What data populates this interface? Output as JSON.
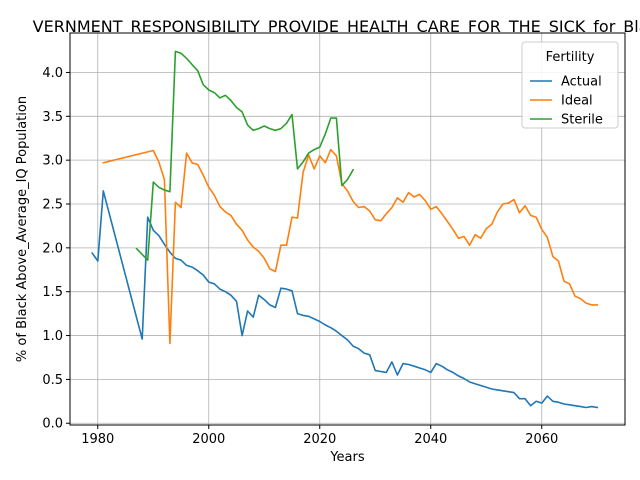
{
  "chart_data": {
    "type": "line",
    "title": "VERNMENT_RESPONSIBILITY_PROVIDE_HEALTH_CARE_FOR_THE_SICK_for_Blac",
    "xlabel": "Years",
    "ylabel": "% of Black Above_Average_IQ Population",
    "xlim": [
      1975,
      2075
    ],
    "ylim": [
      -0.02,
      4.45
    ],
    "xticks": [
      1980,
      2000,
      2020,
      2040,
      2060
    ],
    "yticks": [
      0.0,
      0.5,
      1.0,
      1.5,
      2.0,
      2.5,
      3.0,
      3.5,
      4.0
    ],
    "ytick_labels": [
      "0.0",
      "0.5",
      "1.0",
      "1.5",
      "2.0",
      "2.5",
      "3.0",
      "3.5",
      "4.0"
    ],
    "grid": true,
    "legend": {
      "title": "Fertility",
      "placement": "top-right"
    },
    "series": [
      {
        "name": "Actual",
        "color": "#1f77b4",
        "x": [
          1979,
          1980,
          1981,
          1988,
          1989,
          1990,
          1991,
          1992,
          1993,
          1994,
          1995,
          1996,
          1997,
          1998,
          1999,
          2000,
          2001,
          2002,
          2003,
          2004,
          2005,
          2006,
          2007,
          2008,
          2009,
          2010,
          2011,
          2012,
          2013,
          2014,
          2015,
          2016,
          2017,
          2018,
          2019,
          2020,
          2021,
          2022,
          2023,
          2024,
          2025,
          2026,
          2027,
          2028,
          2029,
          2030,
          2031,
          2032,
          2033,
          2034,
          2035,
          2036,
          2037,
          2038,
          2039,
          2040,
          2041,
          2042,
          2043,
          2044,
          2045,
          2046,
          2047,
          2048,
          2049,
          2050,
          2051,
          2052,
          2053,
          2054,
          2055,
          2056,
          2057,
          2058,
          2059,
          2060,
          2061,
          2062,
          2063,
          2064,
          2065,
          2066,
          2067,
          2068,
          2069,
          2070
        ],
        "y": [
          1.94,
          1.85,
          2.65,
          0.96,
          2.35,
          2.2,
          2.14,
          2.04,
          1.95,
          1.88,
          1.86,
          1.8,
          1.78,
          1.74,
          1.69,
          1.61,
          1.59,
          1.53,
          1.5,
          1.46,
          1.39,
          1.0,
          1.28,
          1.21,
          1.46,
          1.41,
          1.35,
          1.32,
          1.54,
          1.53,
          1.51,
          1.25,
          1.23,
          1.22,
          1.19,
          1.16,
          1.12,
          1.09,
          1.05,
          1.0,
          0.95,
          0.88,
          0.85,
          0.8,
          0.78,
          0.6,
          0.59,
          0.58,
          0.7,
          0.55,
          0.68,
          0.67,
          0.65,
          0.63,
          0.61,
          0.58,
          0.68,
          0.65,
          0.61,
          0.58,
          0.54,
          0.51,
          0.47,
          0.45,
          0.43,
          0.41,
          0.39,
          0.38,
          0.37,
          0.36,
          0.35,
          0.28,
          0.28,
          0.2,
          0.25,
          0.23,
          0.31,
          0.25,
          0.24,
          0.22,
          0.21,
          0.2,
          0.19,
          0.18,
          0.19,
          0.18
        ]
      },
      {
        "name": "Ideal",
        "color": "#ff7f0e",
        "x": [
          1981,
          1990,
          1991,
          1992,
          1993,
          1994,
          1995,
          1996,
          1997,
          1998,
          1999,
          2000,
          2001,
          2002,
          2003,
          2004,
          2005,
          2006,
          2007,
          2008,
          2009,
          2010,
          2011,
          2012,
          2013,
          2014,
          2015,
          2016,
          2017,
          2018,
          2019,
          2020,
          2021,
          2022,
          2023,
          2024,
          2025,
          2026,
          2027,
          2028,
          2029,
          2030,
          2031,
          2032,
          2033,
          2034,
          2035,
          2036,
          2037,
          2038,
          2039,
          2040,
          2041,
          2042,
          2043,
          2044,
          2045,
          2046,
          2047,
          2048,
          2049,
          2050,
          2051,
          2052,
          2053,
          2054,
          2055,
          2056,
          2057,
          2058,
          2059,
          2060,
          2061,
          2062,
          2063,
          2064,
          2065,
          2066,
          2067,
          2068,
          2069,
          2070
        ],
        "y": [
          2.97,
          3.11,
          2.98,
          2.78,
          0.91,
          2.52,
          2.46,
          3.08,
          2.97,
          2.95,
          2.83,
          2.69,
          2.6,
          2.47,
          2.41,
          2.37,
          2.27,
          2.2,
          2.09,
          2.01,
          1.96,
          1.88,
          1.76,
          1.73,
          2.03,
          2.03,
          2.35,
          2.34,
          2.86,
          3.06,
          2.9,
          3.05,
          2.97,
          3.12,
          3.05,
          2.73,
          2.65,
          2.53,
          2.46,
          2.47,
          2.42,
          2.32,
          2.31,
          2.39,
          2.46,
          2.57,
          2.52,
          2.63,
          2.58,
          2.61,
          2.54,
          2.44,
          2.47,
          2.39,
          2.3,
          2.21,
          2.11,
          2.13,
          2.03,
          2.15,
          2.11,
          2.22,
          2.27,
          2.41,
          2.5,
          2.51,
          2.55,
          2.4,
          2.48,
          2.37,
          2.35,
          2.21,
          2.12,
          1.9,
          1.85,
          1.62,
          1.59,
          1.45,
          1.42,
          1.37,
          1.35,
          1.35
        ]
      },
      {
        "name": "Sterile",
        "color": "#2ca02c",
        "x": [
          1987,
          1989,
          1990,
          1991,
          1992,
          1993,
          1994,
          1995,
          1996,
          1997,
          1998,
          1999,
          2000,
          2001,
          2002,
          2003,
          2004,
          2005,
          2006,
          2007,
          2008,
          2009,
          2010,
          2011,
          2012,
          2013,
          2014,
          2015,
          2016,
          2017,
          2018,
          2019,
          2020,
          2021,
          2022,
          2023,
          2024,
          2025,
          2026
        ],
        "y": [
          1.99,
          1.86,
          2.75,
          2.69,
          2.66,
          2.64,
          4.24,
          4.22,
          4.16,
          4.09,
          4.02,
          3.86,
          3.8,
          3.77,
          3.71,
          3.74,
          3.68,
          3.6,
          3.55,
          3.4,
          3.34,
          3.36,
          3.39,
          3.36,
          3.34,
          3.36,
          3.42,
          3.52,
          2.9,
          2.98,
          3.08,
          3.12,
          3.15,
          3.3,
          3.48,
          3.48,
          2.71,
          2.78,
          2.89
        ]
      }
    ]
  }
}
